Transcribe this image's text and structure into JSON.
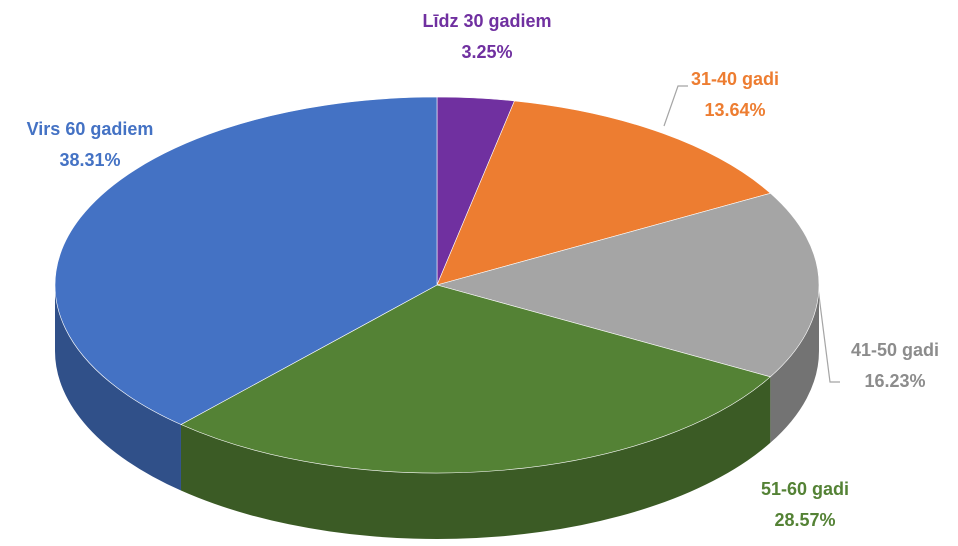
{
  "chart_data": {
    "type": "pie",
    "categories": [
      "Līdz 30 gadiem",
      "31-40 gadi",
      "41-50 gadi",
      "51-60 gadi",
      "Virs 60 gadiem"
    ],
    "values": [
      3.25,
      13.64,
      16.23,
      28.57,
      38.31
    ],
    "value_labels": [
      "3.25%",
      "13.64%",
      "16.23%",
      "28.57%",
      "38.31%"
    ],
    "colors": [
      "#7030a0",
      "#ed7d31",
      "#a5a5a5",
      "#548235",
      "#4472c4"
    ],
    "label_colors": [
      "#7030a0",
      "#ed7d31",
      "#8c8c8c",
      "#548235",
      "#4472c4"
    ]
  }
}
